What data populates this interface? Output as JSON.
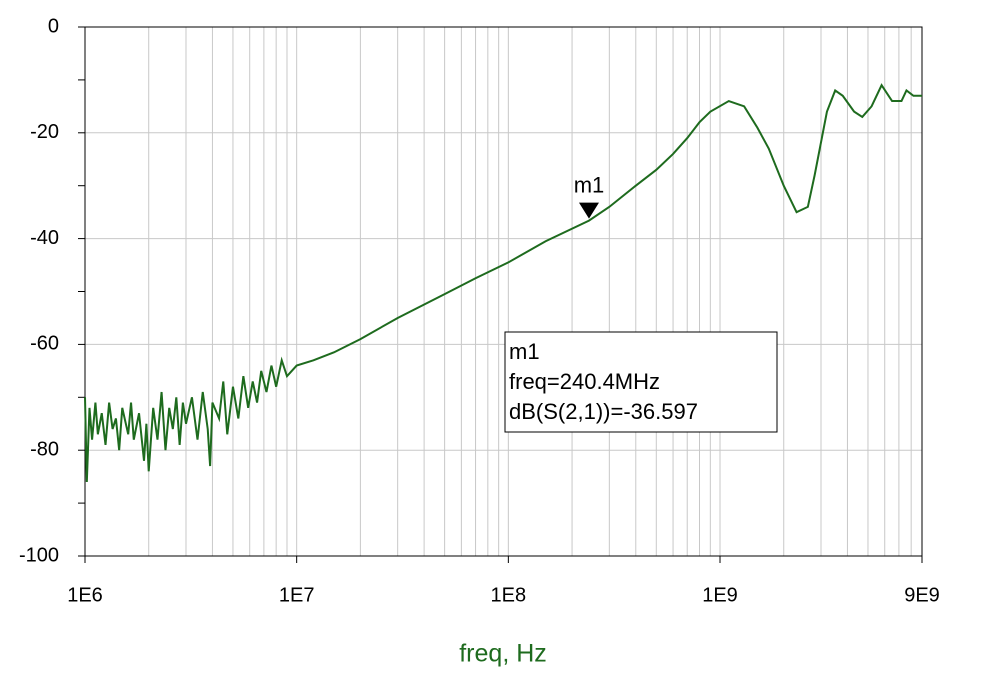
{
  "chart_data": {
    "type": "line",
    "xscale": "log",
    "x_label": "freq, Hz",
    "color": "#1e6b1e",
    "grid": true,
    "xlim": [
      1000000,
      9000000000
    ],
    "xticks": [
      {
        "value": 1000000,
        "label": "1E6"
      },
      {
        "value": 10000000,
        "label": "1E7"
      },
      {
        "value": 100000000,
        "label": "1E8"
      },
      {
        "value": 1000000000,
        "label": "1E9"
      },
      {
        "value": 9000000000,
        "label": "9E9"
      }
    ],
    "ylim": [
      -100,
      0
    ],
    "yticks": [
      -100,
      -80,
      -60,
      -40,
      -20,
      0
    ],
    "x": [
      1000000,
      1020000,
      1050000,
      1080000,
      1120000,
      1150000,
      1200000,
      1250000,
      1300000,
      1350000,
      1400000,
      1450000,
      1500000,
      1600000,
      1650000,
      1700000,
      1800000,
      1900000,
      1950000,
      2000000,
      2100000,
      2200000,
      2300000,
      2400000,
      2500000,
      2600000,
      2700000,
      2800000,
      2900000,
      3000000,
      3200000,
      3400000,
      3600000,
      3800000,
      3900000,
      4000000,
      4300000,
      4500000,
      4700000,
      5000000,
      5300000,
      5600000,
      5900000,
      6200000,
      6500000,
      6800000,
      7200000,
      7600000,
      8000000,
      8500000,
      9000000,
      10000000,
      12000000,
      15000000,
      20000000,
      30000000,
      50000000,
      70000000,
      100000000,
      150000000,
      240400000,
      300000000,
      400000000,
      500000000,
      600000000,
      700000000,
      800000000,
      900000000,
      1100000000,
      1300000000,
      1500000000,
      1700000000,
      2000000000,
      2300000000,
      2600000000,
      2800000000,
      3200000000,
      3500000000,
      3800000000,
      4300000000,
      4700000000,
      5200000000,
      5800000000,
      6500000000,
      7200000000,
      7600000000,
      8200000000,
      9000000000
    ],
    "values": [
      -70,
      -86,
      -72,
      -78,
      -71,
      -77,
      -73,
      -79,
      -71,
      -76,
      -74,
      -80,
      -72,
      -77,
      -71,
      -78,
      -73,
      -82,
      -75,
      -84,
      -72,
      -78,
      -69,
      -80,
      -72,
      -76,
      -70,
      -79,
      -71,
      -75,
      -70,
      -78,
      -69,
      -76,
      -83,
      -71,
      -74,
      -67,
      -77,
      -68,
      -74,
      -66,
      -72,
      -67,
      -71,
      -65,
      -69,
      -64,
      -68,
      -63,
      -66,
      -64,
      -63,
      -61.5,
      -59,
      -55,
      -50.5,
      -47.5,
      -44.5,
      -40.5,
      -36.597,
      -34,
      -30,
      -27,
      -24,
      -21,
      -18,
      -16,
      -14,
      -15,
      -19,
      -23,
      -30,
      -35,
      -34,
      -28,
      -16,
      -12,
      -13,
      -16,
      -17,
      -15,
      -11,
      -14,
      -14,
      -12,
      -13,
      -13
    ],
    "marker": {
      "name": "m1",
      "x": 240400000,
      "y": -36.597,
      "readout": [
        "freq=240.4MHz",
        "dB(S(2,1))=-36.597"
      ]
    }
  }
}
